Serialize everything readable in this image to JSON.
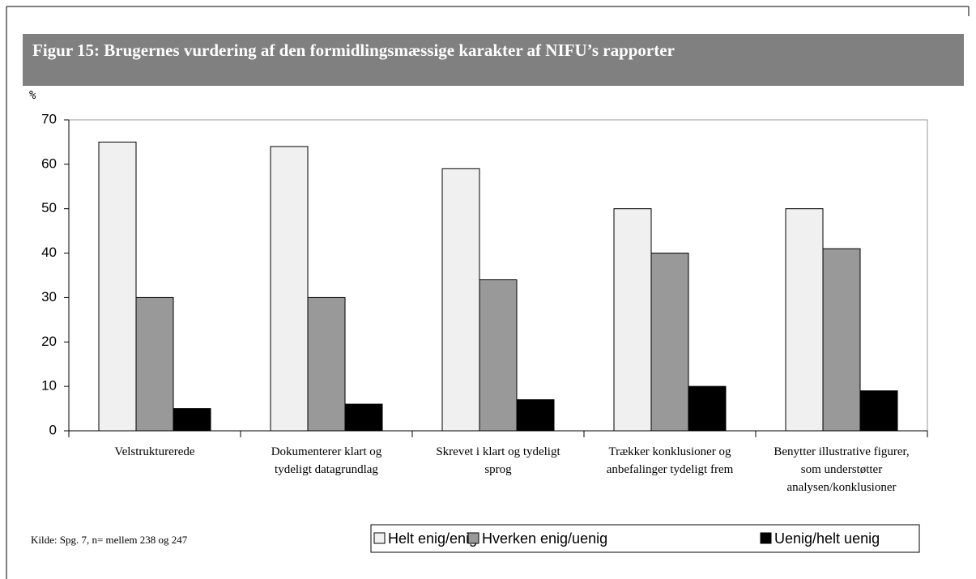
{
  "chart_data": {
    "type": "bar",
    "title": "Figur 15: Brugernes vurdering af den formidlingsmæssige karakter af NIFU’s rapporter",
    "y_label": "%",
    "source": "Kilde: Spg. 7, n= mellem 238 og 247",
    "categories": [
      "Velstrukturerede",
      "Dokumenterer klart og tydeligt datagrundlag",
      "Skrevet i klart og tydeligt sprog",
      "Trækker konklusioner og anbefalinger tydeligt frem",
      "Benytter illustrative figurer, som understøtter analysen/konklusioner"
    ],
    "series": [
      {
        "name": "Helt enig/enig",
        "color": "#f0f0f0",
        "values": [
          65,
          64,
          59,
          50,
          50
        ]
      },
      {
        "name": "Hverken enig/uenig",
        "color": "#999999",
        "values": [
          30,
          30,
          34,
          40,
          41
        ]
      },
      {
        "name": "Uenig/helt uenig",
        "color": "#000000",
        "values": [
          5,
          6,
          7,
          10,
          9
        ]
      }
    ],
    "ylim": [
      0,
      70
    ],
    "yticks": [
      0,
      10,
      20,
      30,
      40,
      50,
      60,
      70
    ],
    "legend": "bottom-right"
  }
}
